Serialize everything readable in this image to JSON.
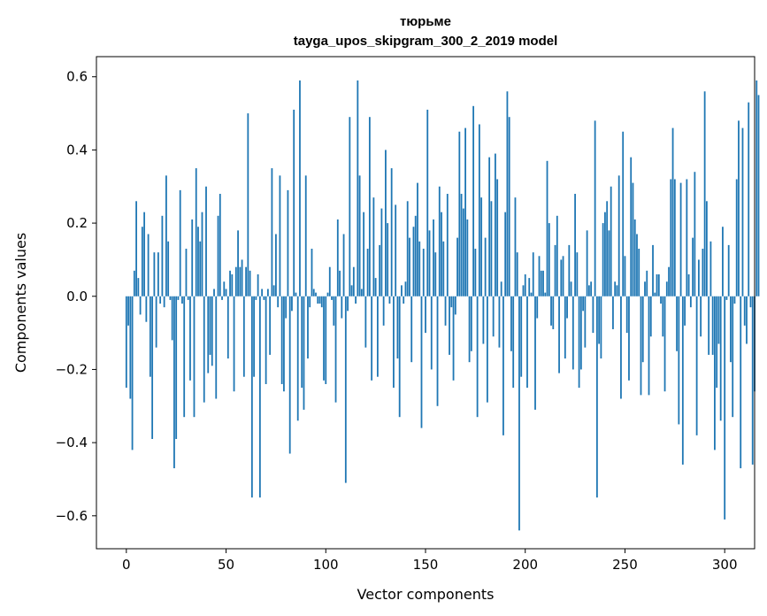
{
  "chart_data": {
    "type": "bar",
    "title": "тюрьме",
    "subtitle": "tayga_upos_skipgram_300_2_2019 model",
    "xlabel": "Vector components",
    "ylabel": "Components values",
    "xlim": [
      -15,
      315
    ],
    "ylim": [
      -0.69,
      0.655
    ],
    "xticks": [
      0,
      50,
      100,
      150,
      200,
      250,
      300
    ],
    "yticks": [
      -0.6,
      -0.4,
      -0.2,
      0.0,
      0.2,
      0.4,
      0.6
    ],
    "xtick_labels": [
      "0",
      "50",
      "100",
      "150",
      "200",
      "250",
      "300"
    ],
    "ytick_labels": [
      "−0.6",
      "−0.4",
      "−0.2",
      "0.0",
      "0.2",
      "0.4",
      "0.6"
    ],
    "bar_color": "#1f77b4",
    "grid": false,
    "series": [
      {
        "values": [
          -0.25,
          -0.08,
          -0.28,
          -0.42,
          0.07,
          0.26,
          0.05,
          -0.05,
          0.19,
          0.23,
          -0.07,
          0.17,
          -0.22,
          -0.39,
          0.12,
          -0.14,
          0.12,
          -0.02,
          0.22,
          -0.03,
          0.33,
          0.15,
          -0.01,
          -0.12,
          -0.47,
          -0.39,
          -0.01,
          0.29,
          -0.02,
          -0.33,
          0.13,
          -0.01,
          -0.23,
          0.21,
          -0.33,
          0.35,
          0.19,
          0.15,
          0.23,
          -0.29,
          0.3,
          -0.21,
          -0.16,
          -0.19,
          0.02,
          -0.28,
          0.22,
          0.28,
          -0.01,
          0.04,
          0.02,
          -0.17,
          0.07,
          0.06,
          -0.26,
          0.08,
          0.18,
          0.08,
          0.1,
          -0.22,
          0.08,
          0.5,
          0.07,
          -0.55,
          -0.22,
          -0.01,
          0.06,
          -0.55,
          0.02,
          -0.01,
          -0.24,
          0.02,
          -0.16,
          0.35,
          0.03,
          0.17,
          -0.03,
          0.33,
          -0.24,
          -0.26,
          -0.06,
          0.29,
          -0.43,
          -0.04,
          0.51,
          0.01,
          -0.34,
          0.59,
          -0.25,
          -0.31,
          0.33,
          -0.17,
          -0.03,
          0.13,
          0.02,
          0.01,
          -0.02,
          -0.02,
          -0.03,
          -0.23,
          -0.24,
          0.01,
          0.08,
          -0.01,
          -0.08,
          -0.29,
          0.21,
          0.07,
          -0.06,
          0.17,
          -0.51,
          -0.04,
          0.49,
          0.03,
          0.08,
          -0.02,
          0.59,
          0.33,
          0.02,
          0.23,
          -0.14,
          0.13,
          0.49,
          -0.23,
          0.27,
          0.05,
          -0.22,
          0.14,
          0.24,
          -0.08,
          0.4,
          0.2,
          -0.02,
          0.35,
          -0.25,
          0.25,
          -0.17,
          -0.33,
          0.03,
          -0.02,
          0.04,
          0.26,
          0.16,
          -0.18,
          0.19,
          0.22,
          0.31,
          0.15,
          -0.36,
          0.13,
          -0.1,
          0.51,
          0.18,
          -0.2,
          0.21,
          0.12,
          -0.3,
          0.3,
          0.23,
          0.15,
          -0.08,
          0.28,
          -0.16,
          -0.03,
          -0.23,
          -0.05,
          0.16,
          0.45,
          0.28,
          0.24,
          0.46,
          0.21,
          -0.18,
          -0.15,
          0.52,
          0.13,
          -0.33,
          0.47,
          0.27,
          -0.13,
          0.16,
          -0.29,
          0.38,
          0.26,
          -0.11,
          0.39,
          0.32,
          -0.14,
          0.04,
          -0.38,
          0.23,
          0.56,
          0.49,
          -0.15,
          -0.25,
          0.27,
          0.12,
          -0.64,
          -0.22,
          0.03,
          0.06,
          -0.25,
          0.05,
          0.01,
          0.12,
          -0.31,
          -0.06,
          0.11,
          0.07,
          0.07,
          0.01,
          0.37,
          0.2,
          -0.08,
          -0.09,
          0.14,
          0.22,
          -0.21,
          0.1,
          0.11,
          -0.17,
          -0.06,
          0.14,
          0.04,
          -0.2,
          0.28,
          0.12,
          -0.25,
          -0.2,
          -0.04,
          -0.14,
          0.18,
          0.03,
          0.04,
          -0.1,
          0.48,
          -0.55,
          -0.13,
          -0.17,
          0.2,
          0.23,
          0.26,
          0.18,
          0.3,
          -0.09,
          0.04,
          0.03,
          0.33,
          -0.28,
          0.45,
          0.11,
          -0.1,
          -0.23,
          0.38,
          0.31,
          0.21,
          0.17,
          0.13,
          -0.27,
          -0.18,
          0.04,
          0.07,
          -0.27,
          -0.11,
          0.14,
          0.01,
          0.06,
          0.06,
          -0.02,
          -0.11,
          -0.26,
          0.04,
          0.08,
          0.32,
          0.46,
          0.32,
          -0.15,
          -0.35,
          0.31,
          -0.46,
          -0.08,
          0.32,
          0.06,
          -0.03,
          0.16,
          0.34,
          -0.38,
          0.1,
          -0.11,
          0.13,
          0.56,
          0.26,
          -0.16,
          0.15,
          -0.16,
          -0.42,
          -0.25,
          -0.13,
          -0.34,
          0.19,
          -0.61,
          -0.01,
          0.14,
          -0.18,
          -0.33,
          -0.02,
          0.32,
          0.48,
          -0.47,
          0.46,
          -0.08,
          -0.13,
          0.53,
          -0.03,
          -0.46,
          -0.26,
          0.59,
          0.55
        ]
      }
    ]
  }
}
